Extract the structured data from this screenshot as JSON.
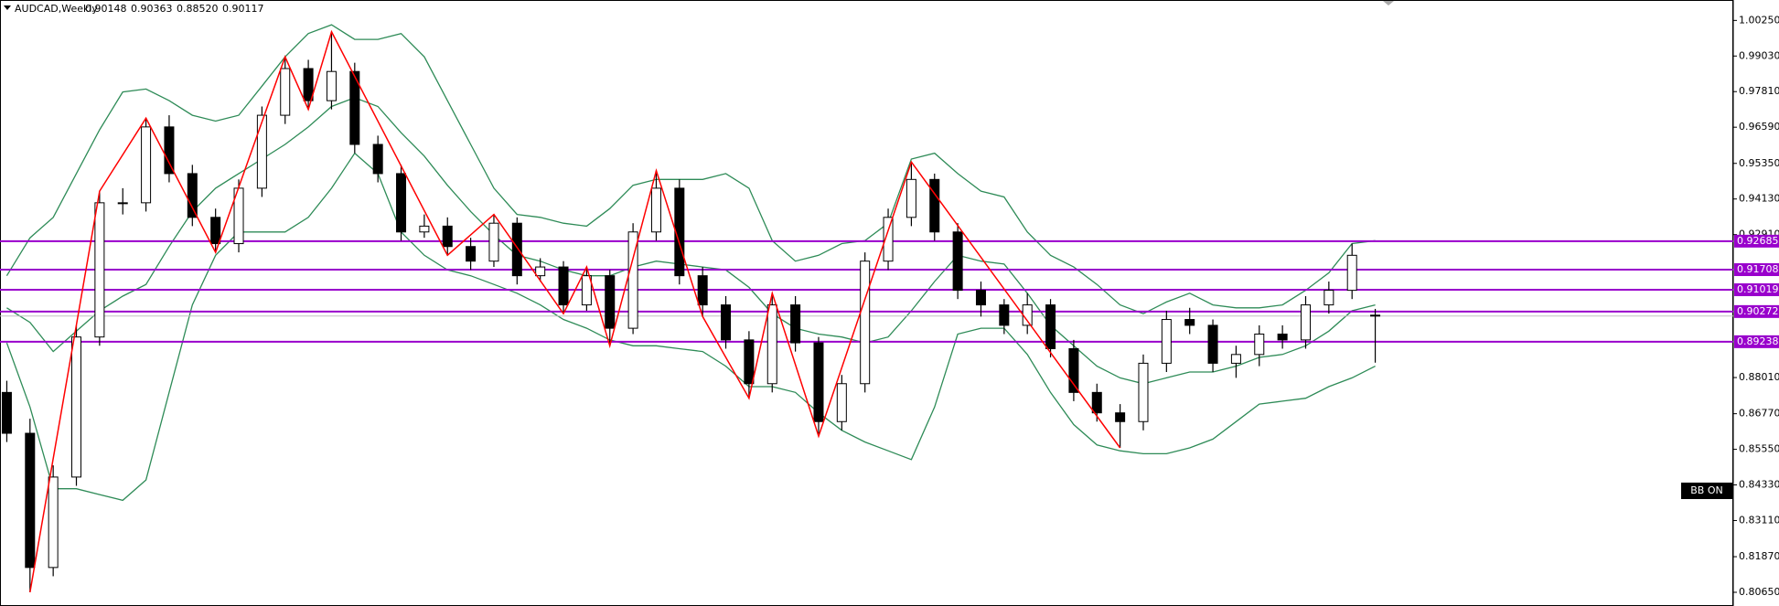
{
  "chart_data": {
    "type": "candlestick",
    "title": "AUDCAD,Weekly",
    "header_values": [
      "0.90148",
      "0.90363",
      "0.88520",
      "0.90117"
    ],
    "open": [
      0.875,
      0.861,
      0.815,
      0.846,
      0.894,
      0.94,
      0.94,
      0.966,
      0.95,
      0.935,
      0.926,
      0.945,
      0.97,
      0.986,
      0.975,
      0.985,
      0.96,
      0.95,
      0.93,
      0.932,
      0.925,
      0.92,
      0.933,
      0.915,
      0.918,
      0.905,
      0.915,
      0.897,
      0.93,
      0.945,
      0.915,
      0.905,
      0.893,
      0.878,
      0.905,
      0.892,
      0.865,
      0.878,
      0.92,
      0.935,
      0.948,
      0.93,
      0.91,
      0.905,
      0.898,
      0.905,
      0.89,
      0.875,
      0.868,
      0.865,
      0.885,
      0.9,
      0.898,
      0.885,
      0.888,
      0.895,
      0.893,
      0.905,
      0.91,
      0.90148
    ],
    "high": [
      0.879,
      0.866,
      0.85,
      0.898,
      0.944,
      0.945,
      0.969,
      0.97,
      0.953,
      0.938,
      0.948,
      0.973,
      0.99,
      0.989,
      0.9986,
      0.988,
      0.963,
      0.953,
      0.936,
      0.935,
      0.928,
      0.936,
      0.935,
      0.921,
      0.92,
      0.918,
      0.917,
      0.933,
      0.951,
      0.948,
      0.918,
      0.908,
      0.896,
      0.909,
      0.908,
      0.894,
      0.881,
      0.923,
      0.938,
      0.954,
      0.95,
      0.933,
      0.913,
      0.907,
      0.909,
      0.907,
      0.893,
      0.878,
      0.871,
      0.888,
      0.903,
      0.904,
      0.9,
      0.891,
      0.898,
      0.898,
      0.908,
      0.913,
      0.926,
      0.90363
    ],
    "low": [
      0.858,
      0.8065,
      0.812,
      0.843,
      0.891,
      0.936,
      0.937,
      0.947,
      0.932,
      0.923,
      0.923,
      0.942,
      0.967,
      0.972,
      0.972,
      0.957,
      0.947,
      0.927,
      0.928,
      0.922,
      0.917,
      0.918,
      0.912,
      0.913,
      0.902,
      0.903,
      0.891,
      0.895,
      0.927,
      0.912,
      0.901,
      0.89,
      0.873,
      0.875,
      0.889,
      0.86,
      0.862,
      0.875,
      0.917,
      0.932,
      0.927,
      0.907,
      0.901,
      0.895,
      0.895,
      0.887,
      0.872,
      0.865,
      0.856,
      0.862,
      0.882,
      0.895,
      0.882,
      0.88,
      0.884,
      0.89,
      0.89,
      0.902,
      0.907,
      0.8852
    ],
    "close": [
      0.861,
      0.815,
      0.846,
      0.894,
      0.94,
      0.94,
      0.966,
      0.95,
      0.935,
      0.926,
      0.945,
      0.97,
      0.986,
      0.975,
      0.985,
      0.96,
      0.95,
      0.93,
      0.932,
      0.925,
      0.92,
      0.933,
      0.915,
      0.918,
      0.905,
      0.915,
      0.897,
      0.93,
      0.945,
      0.915,
      0.905,
      0.893,
      0.878,
      0.905,
      0.892,
      0.865,
      0.878,
      0.92,
      0.935,
      0.948,
      0.93,
      0.91,
      0.905,
      0.898,
      0.905,
      0.89,
      0.875,
      0.868,
      0.865,
      0.885,
      0.9,
      0.898,
      0.885,
      0.888,
      0.895,
      0.893,
      0.905,
      0.91,
      0.922,
      0.90117
    ],
    "up_color": "#ffffff",
    "down_color": "#000000",
    "bands": {
      "color": "#2e8b57",
      "upper": [
        0.915,
        0.928,
        0.935,
        0.95,
        0.965,
        0.978,
        0.979,
        0.975,
        0.97,
        0.968,
        0.97,
        0.98,
        0.99,
        0.998,
        1.001,
        0.996,
        0.996,
        0.998,
        0.99,
        0.975,
        0.96,
        0.945,
        0.936,
        0.935,
        0.933,
        0.932,
        0.938,
        0.946,
        0.948,
        0.948,
        0.948,
        0.95,
        0.945,
        0.927,
        0.92,
        0.922,
        0.926,
        0.927,
        0.933,
        0.955,
        0.957,
        0.95,
        0.944,
        0.942,
        0.93,
        0.922,
        0.918,
        0.912,
        0.905,
        0.902,
        0.906,
        0.909,
        0.905,
        0.904,
        0.904,
        0.905,
        0.91,
        0.916,
        0.926,
        0.927
      ],
      "middle": [
        0.904,
        0.899,
        0.889,
        0.896,
        0.903,
        0.908,
        0.912,
        0.925,
        0.937,
        0.945,
        0.95,
        0.955,
        0.96,
        0.966,
        0.973,
        0.976,
        0.973,
        0.964,
        0.956,
        0.946,
        0.937,
        0.929,
        0.922,
        0.92,
        0.917,
        0.915,
        0.915,
        0.918,
        0.92,
        0.919,
        0.918,
        0.917,
        0.911,
        0.902,
        0.897,
        0.895,
        0.894,
        0.892,
        0.894,
        0.903,
        0.913,
        0.922,
        0.92,
        0.919,
        0.909,
        0.898,
        0.891,
        0.884,
        0.88,
        0.878,
        0.88,
        0.882,
        0.882,
        0.884,
        0.887,
        0.888,
        0.891,
        0.896,
        0.903,
        0.905
      ],
      "lower": [
        0.892,
        0.87,
        0.842,
        0.842,
        0.84,
        0.838,
        0.845,
        0.875,
        0.905,
        0.922,
        0.93,
        0.93,
        0.93,
        0.935,
        0.945,
        0.957,
        0.95,
        0.93,
        0.922,
        0.917,
        0.915,
        0.912,
        0.909,
        0.905,
        0.9,
        0.897,
        0.893,
        0.891,
        0.891,
        0.89,
        0.889,
        0.884,
        0.877,
        0.877,
        0.875,
        0.868,
        0.862,
        0.858,
        0.855,
        0.852,
        0.87,
        0.895,
        0.897,
        0.897,
        0.888,
        0.875,
        0.864,
        0.857,
        0.855,
        0.854,
        0.854,
        0.856,
        0.859,
        0.865,
        0.871,
        0.872,
        0.873,
        0.877,
        0.88,
        0.884
      ]
    },
    "zigzag": {
      "color": "#ff0000",
      "index": [
        1,
        4,
        6,
        9,
        12,
        13,
        14,
        19,
        21,
        24,
        25,
        26,
        28,
        30,
        32,
        33,
        35,
        39,
        48
      ],
      "price": [
        0.8065,
        0.944,
        0.969,
        0.923,
        0.99,
        0.972,
        0.9986,
        0.922,
        0.936,
        0.902,
        0.918,
        0.891,
        0.951,
        0.901,
        0.873,
        0.909,
        0.86,
        0.954,
        0.856
      ]
    },
    "levels": {
      "color": "#9900cc",
      "values": [
        0.92685,
        0.91708,
        0.91019,
        0.90272,
        0.89238
      ]
    },
    "price_line_color": "#c0c0c0",
    "ylim": [
      0.8018,
      1.0095
    ],
    "yticks": [
      {
        "value": 1.0025,
        "label": "1.00250"
      },
      {
        "value": 0.9903,
        "label": "0.99030"
      },
      {
        "value": 0.9781,
        "label": "0.97810"
      },
      {
        "value": 0.9659,
        "label": "0.96590"
      },
      {
        "value": 0.9535,
        "label": "0.95350"
      },
      {
        "value": 0.9413,
        "label": "0.94130"
      },
      {
        "value": 0.9291,
        "label": "0.92910"
      },
      {
        "value": 0.8801,
        "label": "0.88010"
      },
      {
        "value": 0.8677,
        "label": "0.86770"
      },
      {
        "value": 0.8555,
        "label": "0.85550"
      },
      {
        "value": 0.8433,
        "label": "0.84330"
      },
      {
        "value": 0.8311,
        "label": "0.83110"
      },
      {
        "value": 0.8187,
        "label": "0.81870"
      },
      {
        "value": 0.8065,
        "label": "0.80650"
      }
    ],
    "button": "BB ON"
  }
}
